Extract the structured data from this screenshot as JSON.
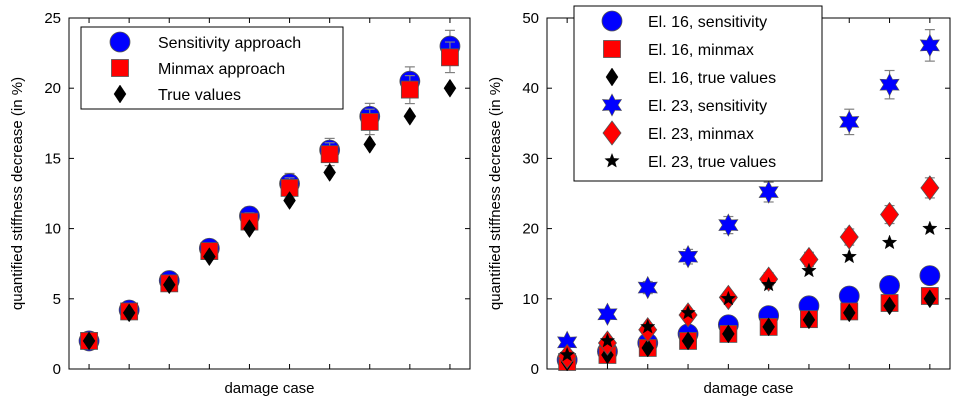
{
  "colors": {
    "blue": "#0000ff",
    "red": "#ff0000",
    "black": "#000000",
    "errorbar": "#808080"
  },
  "chart_data": [
    {
      "type": "scatter",
      "xlabel": "damage case",
      "ylabel": "quantified stiffness decrease (in %)",
      "xlim": [
        0.5,
        10.5
      ],
      "ylim": [
        0,
        25
      ],
      "yticks": [
        0,
        5,
        10,
        15,
        20,
        25
      ],
      "xticks": [
        1,
        2,
        3,
        4,
        5,
        6,
        7,
        8,
        9,
        10
      ],
      "legend_position": "top-left",
      "series": [
        {
          "name": "Sensitivity approach",
          "marker": "circle",
          "color": "#0000ff",
          "x": [
            1,
            2,
            3,
            4,
            5,
            6,
            7,
            8,
            9,
            10
          ],
          "y": [
            2,
            4.2,
            6.3,
            8.6,
            10.9,
            13.2,
            15.6,
            18,
            20.5,
            23
          ]
        },
        {
          "name": "Minmax approach",
          "marker": "square",
          "color": "#ff0000",
          "x": [
            1,
            2,
            3,
            4,
            5,
            6,
            7,
            8,
            9,
            10
          ],
          "y": [
            2,
            4.1,
            6.1,
            8.4,
            10.5,
            12.9,
            15.3,
            17.6,
            19.9,
            22.2
          ]
        },
        {
          "name": "True values",
          "marker": "diamond",
          "color": "#000000",
          "x": [
            1,
            2,
            3,
            4,
            5,
            6,
            7,
            8,
            9,
            10
          ],
          "y": [
            2,
            4,
            6,
            8,
            10,
            12,
            14,
            16,
            18,
            20
          ]
        }
      ]
    },
    {
      "type": "scatter",
      "xlabel": "damage case",
      "ylabel": "quantified stiffness decrease (in %)",
      "xlim": [
        0.5,
        10.5
      ],
      "ylim": [
        0,
        50
      ],
      "yticks": [
        0,
        10,
        20,
        30,
        40,
        50
      ],
      "xticks": [
        1,
        2,
        3,
        4,
        5,
        6,
        7,
        8,
        9,
        10
      ],
      "legend_position": "top-left",
      "series": [
        {
          "name": "El. 16, sensitivity",
          "marker": "circle",
          "color": "#0000ff",
          "x": [
            1,
            2,
            3,
            4,
            5,
            6,
            7,
            8,
            9,
            10
          ],
          "y": [
            1.3,
            2.5,
            3.7,
            5,
            6.3,
            7.6,
            9,
            10.4,
            11.9,
            13.3
          ]
        },
        {
          "name": "El. 16, minmax",
          "marker": "square",
          "color": "#ff0000",
          "x": [
            1,
            2,
            3,
            4,
            5,
            6,
            7,
            8,
            9,
            10
          ],
          "y": [
            1,
            2,
            3,
            4,
            5,
            6,
            7.1,
            8.2,
            9.4,
            10.4
          ]
        },
        {
          "name": "El. 16, true values",
          "marker": "diamond",
          "color": "#000000",
          "x": [
            1,
            2,
            3,
            4,
            5,
            6,
            7,
            8,
            9,
            10
          ],
          "y": [
            1,
            2,
            3,
            4,
            5,
            6,
            7,
            8,
            9,
            10
          ]
        },
        {
          "name": "El. 23, sensitivity",
          "marker": "hexagram",
          "color": "#0000ff",
          "x": [
            1,
            2,
            3,
            4,
            5,
            6,
            7,
            8,
            9,
            10
          ],
          "y": [
            3.8,
            7.8,
            11.6,
            16,
            20.5,
            25.2,
            30.1,
            35.2,
            40.5,
            46.1
          ]
        },
        {
          "name": "El. 23, minmax",
          "marker": "big-diamond",
          "color": "#ff0000",
          "x": [
            1,
            2,
            3,
            4,
            5,
            6,
            7,
            8,
            9,
            10
          ],
          "y": [
            1.8,
            3.7,
            5.6,
            7.7,
            10.2,
            12.8,
            15.6,
            18.8,
            22,
            25.8
          ]
        },
        {
          "name": "El. 23, true values",
          "marker": "star",
          "color": "#000000",
          "x": [
            1,
            2,
            3,
            4,
            5,
            6,
            7,
            8,
            9,
            10
          ],
          "y": [
            2,
            4,
            6,
            8,
            10,
            12,
            14,
            16,
            18,
            20
          ]
        }
      ]
    }
  ]
}
